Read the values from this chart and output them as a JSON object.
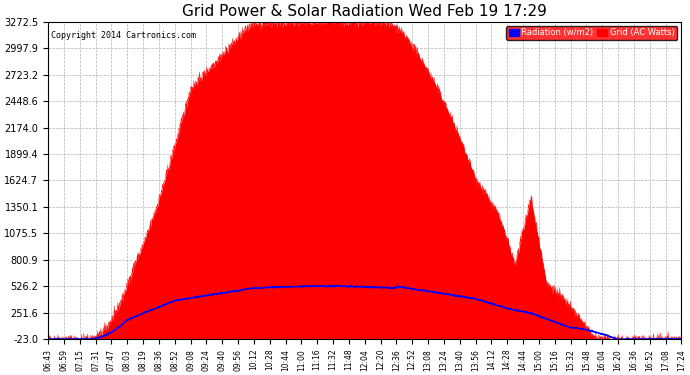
{
  "title": "Grid Power & Solar Radiation Wed Feb 19 17:29",
  "copyright": "Copyright 2014 Cartronics.com",
  "legend_radiation": "Radiation (w/m2)",
  "legend_grid": "Grid (AC Watts)",
  "yticks": [
    -23.0,
    251.6,
    526.2,
    800.9,
    1075.5,
    1350.1,
    1624.7,
    1899.4,
    2174.0,
    2448.6,
    2723.2,
    2997.9,
    3272.5
  ],
  "ymin": -23.0,
  "ymax": 3272.5,
  "background_color": "#ffffff",
  "plot_bg_color": "#ffffff",
  "grid_color": "#aaaaaa",
  "fill_color": "#ff0000",
  "line_color": "#0000ff",
  "title_fontsize": 11,
  "xtick_labels": [
    "06:43",
    "06:59",
    "07:15",
    "07:31",
    "07:47",
    "08:03",
    "08:19",
    "08:36",
    "08:52",
    "09:08",
    "09:24",
    "09:40",
    "09:56",
    "10:12",
    "10:28",
    "10:44",
    "11:00",
    "11:16",
    "11:32",
    "11:48",
    "12:04",
    "12:20",
    "12:36",
    "12:52",
    "13:08",
    "13:24",
    "13:40",
    "13:56",
    "14:12",
    "14:28",
    "14:44",
    "15:00",
    "15:16",
    "15:32",
    "15:48",
    "16:04",
    "16:20",
    "16:36",
    "16:52",
    "17:08",
    "17:24"
  ]
}
